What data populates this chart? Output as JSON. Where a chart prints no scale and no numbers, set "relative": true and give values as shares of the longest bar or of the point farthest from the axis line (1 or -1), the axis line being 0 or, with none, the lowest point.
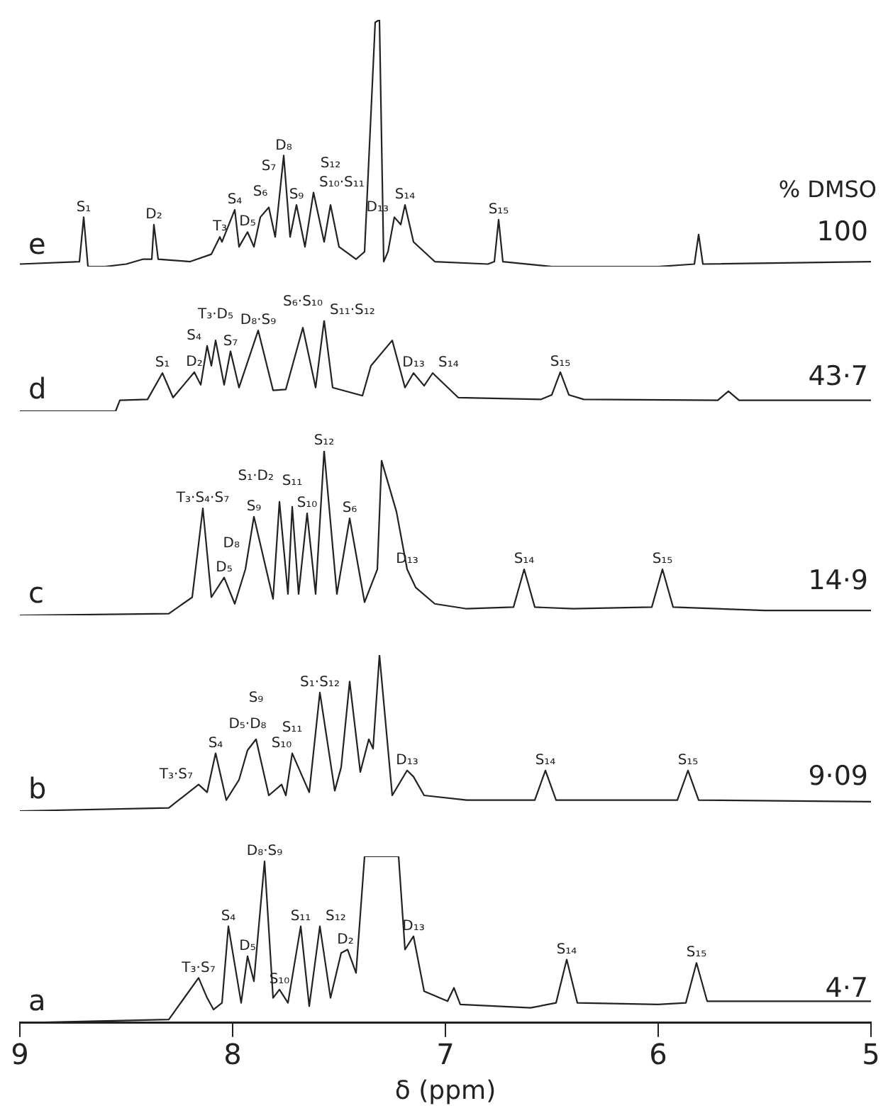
{
  "chart_data": [
    {
      "type": "line",
      "relative": true,
      "tick_labels": false,
      "color": "#222222",
      "xlim": [
        9,
        5
      ],
      "x": [
        9.0,
        8.72,
        8.7,
        8.68,
        8.6,
        8.5,
        8.42,
        8.38,
        8.37,
        8.35,
        8.2,
        8.1,
        8.06,
        8.05,
        7.99,
        7.97,
        7.93,
        7.9,
        7.87,
        7.83,
        7.8,
        7.76,
        7.73,
        7.7,
        7.66,
        7.62,
        7.57,
        7.54,
        7.5,
        7.42,
        7.38,
        7.33,
        7.31,
        7.29,
        7.27,
        7.24,
        7.21,
        7.19,
        7.15,
        7.05,
        6.8,
        6.77,
        6.75,
        6.73,
        6.5,
        6.0,
        5.83,
        5.81,
        5.79,
        5.0
      ],
      "values": [
        0.01,
        0.02,
        0.2,
        0.0,
        0.0,
        0.01,
        0.03,
        0.03,
        0.17,
        0.03,
        0.02,
        0.05,
        0.12,
        0.1,
        0.23,
        0.08,
        0.14,
        0.08,
        0.2,
        0.24,
        0.12,
        0.45,
        0.12,
        0.25,
        0.08,
        0.3,
        0.1,
        0.25,
        0.08,
        0.03,
        0.06,
        0.99,
        1.0,
        0.02,
        0.06,
        0.2,
        0.17,
        0.25,
        0.1,
        0.02,
        0.01,
        0.02,
        0.19,
        0.02,
        0.0,
        0.0,
        0.01,
        0.13,
        0.01,
        0.02
      ],
      "annotations": [
        "e",
        "100",
        "% DMSO",
        {
          "text": "S₁",
          "x": 8.7,
          "y": 0.2
        },
        {
          "text": "D₂",
          "x": 8.37,
          "y": 0.17
        },
        {
          "text": "T₃",
          "x": 8.06,
          "y": 0.12
        },
        {
          "text": "S₄",
          "x": 7.99,
          "y": 0.23
        },
        {
          "text": "D₅",
          "x": 7.93,
          "y": 0.14
        },
        {
          "text": "S₆",
          "x": 7.87,
          "y": 0.2
        },
        {
          "text": "S₇",
          "x": 7.83,
          "y": 0.24
        },
        {
          "text": "D₈",
          "x": 7.76,
          "y": 0.45
        },
        {
          "text": "S₉",
          "x": 7.7,
          "y": 0.25
        },
        {
          "text": "S₁₀·S₁₁",
          "x": 7.62,
          "y": 0.3
        },
        {
          "text": "S₁₂",
          "x": 7.54,
          "y": 0.25
        },
        {
          "text": "D₁₃",
          "x": 7.24,
          "y": 0.2
        },
        {
          "text": "S₁₄",
          "x": 7.19,
          "y": 0.25
        },
        {
          "text": "S₁₅",
          "x": 6.75,
          "y": 0.19
        }
      ]
    },
    {
      "type": "line",
      "relative": true,
      "tick_labels": false,
      "color": "#222222",
      "xlim": [
        9,
        5
      ],
      "x": [
        9.0,
        8.55,
        8.53,
        8.4,
        8.33,
        8.28,
        8.18,
        8.15,
        8.12,
        8.1,
        8.08,
        8.04,
        8.01,
        7.97,
        7.88,
        7.81,
        7.75,
        7.67,
        7.61,
        7.57,
        7.53,
        7.39,
        7.35,
        7.25,
        7.19,
        7.15,
        7.1,
        7.06,
        6.94,
        6.55,
        6.5,
        6.46,
        6.42,
        6.35,
        5.72,
        5.67,
        5.62,
        5.0
      ],
      "values": [
        0.0,
        0.0,
        0.12,
        0.13,
        0.42,
        0.15,
        0.43,
        0.29,
        0.72,
        0.5,
        0.78,
        0.29,
        0.66,
        0.26,
        0.89,
        0.23,
        0.24,
        0.92,
        0.26,
        1.0,
        0.26,
        0.17,
        0.5,
        0.78,
        0.26,
        0.42,
        0.28,
        0.42,
        0.15,
        0.13,
        0.18,
        0.43,
        0.18,
        0.13,
        0.12,
        0.22,
        0.12,
        0.12
      ],
      "annotations": [
        "d",
        "43·7",
        {
          "text": "S₁",
          "x": 8.33,
          "y": 0.42
        },
        {
          "text": "D₂",
          "x": 8.18,
          "y": 0.43
        },
        {
          "text": "S₄",
          "x": 8.12,
          "y": 0.72
        },
        {
          "text": "T₃·D₅",
          "x": 8.08,
          "y": 0.78
        },
        {
          "text": "S₇",
          "x": 8.01,
          "y": 0.66
        },
        {
          "text": "D₈·S₉",
          "x": 7.88,
          "y": 0.89
        },
        {
          "text": "S₆·S₁₀",
          "x": 7.67,
          "y": 0.92
        },
        {
          "text": "S₁₁·S₁₂",
          "x": 7.57,
          "y": 1.0
        },
        {
          "text": "D₁₃",
          "x": 7.15,
          "y": 0.42
        },
        {
          "text": "S₁₄",
          "x": 7.06,
          "y": 0.42
        },
        {
          "text": "S₁₅",
          "x": 6.46,
          "y": 0.43
        }
      ]
    },
    {
      "type": "line",
      "relative": true,
      "tick_labels": false,
      "color": "#222222",
      "xlim": [
        9,
        5
      ],
      "x": [
        9.0,
        8.3,
        8.19,
        8.14,
        8.1,
        8.04,
        7.99,
        7.94,
        7.9,
        7.81,
        7.78,
        7.74,
        7.72,
        7.69,
        7.65,
        7.61,
        7.57,
        7.51,
        7.45,
        7.38,
        7.32,
        7.3,
        7.23,
        7.18,
        7.14,
        7.05,
        6.9,
        6.68,
        6.63,
        6.58,
        6.4,
        6.03,
        5.98,
        5.93,
        5.5,
        5.0
      ],
      "values": [
        0.0,
        0.01,
        0.11,
        0.65,
        0.11,
        0.23,
        0.07,
        0.28,
        0.6,
        0.1,
        0.69,
        0.13,
        0.66,
        0.13,
        0.62,
        0.13,
        1.0,
        0.13,
        0.59,
        0.08,
        0.28,
        0.94,
        0.63,
        0.28,
        0.17,
        0.07,
        0.04,
        0.05,
        0.28,
        0.05,
        0.04,
        0.05,
        0.28,
        0.05,
        0.03,
        0.03
      ],
      "annotations": [
        "c",
        "14·9",
        {
          "text": "T₃·S₄·S₇",
          "x": 8.14,
          "y": 0.65
        },
        {
          "text": "D₅",
          "x": 8.04,
          "y": 0.23
        },
        {
          "text": "D₈",
          "x": 7.94,
          "y": 0.28
        },
        {
          "text": "S₉",
          "x": 7.9,
          "y": 0.6
        },
        {
          "text": "S₁₀",
          "x": 7.65,
          "y": 0.62
        },
        {
          "text": "S₁₁",
          "x": 7.72,
          "y": 0.66
        },
        {
          "text": "S₁·D₂",
          "x": 7.78,
          "y": 0.69
        },
        {
          "text": "S₁₂",
          "x": 7.57,
          "y": 1.0
        },
        {
          "text": "S₆",
          "x": 7.45,
          "y": 0.59
        },
        {
          "text": "D₁₃",
          "x": 7.18,
          "y": 0.28
        },
        {
          "text": "S₁₄",
          "x": 6.63,
          "y": 0.28
        },
        {
          "text": "S₁₅",
          "x": 5.98,
          "y": 0.28
        }
      ]
    },
    {
      "type": "line",
      "relative": true,
      "tick_labels": false,
      "color": "#222222",
      "xlim": [
        9,
        5
      ],
      "x": [
        9.0,
        8.3,
        8.16,
        8.12,
        8.08,
        8.03,
        7.97,
        7.93,
        7.89,
        7.83,
        7.77,
        7.75,
        7.72,
        7.64,
        7.59,
        7.52,
        7.49,
        7.45,
        7.4,
        7.36,
        7.34,
        7.31,
        7.25,
        7.18,
        7.15,
        7.1,
        6.9,
        6.58,
        6.53,
        6.48,
        6.2,
        5.91,
        5.86,
        5.81,
        5.0
      ],
      "values": [
        0.0,
        0.02,
        0.17,
        0.12,
        0.37,
        0.07,
        0.2,
        0.39,
        0.46,
        0.1,
        0.17,
        0.1,
        0.37,
        0.12,
        0.76,
        0.13,
        0.28,
        0.83,
        0.25,
        0.46,
        0.4,
        1.0,
        0.1,
        0.26,
        0.22,
        0.1,
        0.07,
        0.07,
        0.26,
        0.07,
        0.07,
        0.07,
        0.26,
        0.07,
        0.06
      ],
      "annotations": [
        "b",
        "9·09",
        {
          "text": "T₃·S₇",
          "x": 8.16,
          "y": 0.17
        },
        {
          "text": "S₄",
          "x": 8.08,
          "y": 0.37
        },
        {
          "text": "D₅·D₈",
          "x": 7.93,
          "y": 0.39
        },
        {
          "text": "S₉",
          "x": 7.89,
          "y": 0.46
        },
        {
          "text": "S₁₀",
          "x": 7.77,
          "y": 0.17
        },
        {
          "text": "S₁₁",
          "x": 7.72,
          "y": 0.37
        },
        {
          "text": "S₁·S₁₂",
          "x": 7.59,
          "y": 0.76
        },
        {
          "text": "D₁₃",
          "x": 7.18,
          "y": 0.26
        },
        {
          "text": "S₁₄",
          "x": 6.53,
          "y": 0.26
        },
        {
          "text": "S₁₅",
          "x": 5.86,
          "y": 0.26
        }
      ]
    },
    {
      "type": "line",
      "relative": true,
      "tick_labels": "x",
      "color": "#222222",
      "xlim": [
        9,
        5
      ],
      "xticks": [
        9,
        8,
        7,
        6,
        5
      ],
      "xlabel": "δ (ppm)",
      "x": [
        9.0,
        8.3,
        8.16,
        8.12,
        8.09,
        8.05,
        8.02,
        7.96,
        7.93,
        7.9,
        7.85,
        7.81,
        7.78,
        7.74,
        7.68,
        7.64,
        7.59,
        7.54,
        7.49,
        7.46,
        7.42,
        7.38,
        7.22,
        7.19,
        7.15,
        7.1,
        6.99,
        6.96,
        6.93,
        6.6,
        6.48,
        6.43,
        6.38,
        6.0,
        5.87,
        5.82,
        5.77,
        5.0
      ],
      "values": [
        0.0,
        0.02,
        0.27,
        0.15,
        0.08,
        0.12,
        0.58,
        0.12,
        0.4,
        0.25,
        0.97,
        0.15,
        0.2,
        0.12,
        0.58,
        0.1,
        0.58,
        0.15,
        0.42,
        0.44,
        0.3,
        1.0,
        1.0,
        0.44,
        0.52,
        0.19,
        0.13,
        0.21,
        0.11,
        0.09,
        0.12,
        0.38,
        0.12,
        0.11,
        0.12,
        0.36,
        0.13,
        0.13
      ],
      "annotations": [
        "a",
        "4·7",
        {
          "text": "T₃·S₇",
          "x": 8.16,
          "y": 0.27
        },
        {
          "text": "S₄",
          "x": 8.02,
          "y": 0.58
        },
        {
          "text": "D₅",
          "x": 7.93,
          "y": 0.4
        },
        {
          "text": "D₈·S₉",
          "x": 7.85,
          "y": 0.97
        },
        {
          "text": "S₁₀",
          "x": 7.78,
          "y": 0.2
        },
        {
          "text": "S₁₁",
          "x": 7.68,
          "y": 0.58
        },
        {
          "text": "S₁₂",
          "x": 7.59,
          "y": 0.58
        },
        {
          "text": "D₂",
          "x": 7.47,
          "y": 0.44
        },
        {
          "text": "D₁₃",
          "x": 7.15,
          "y": 0.52
        },
        {
          "text": "S₁₄",
          "x": 6.43,
          "y": 0.38
        },
        {
          "text": "S₁₅",
          "x": 5.82,
          "y": 0.36
        }
      ]
    }
  ]
}
